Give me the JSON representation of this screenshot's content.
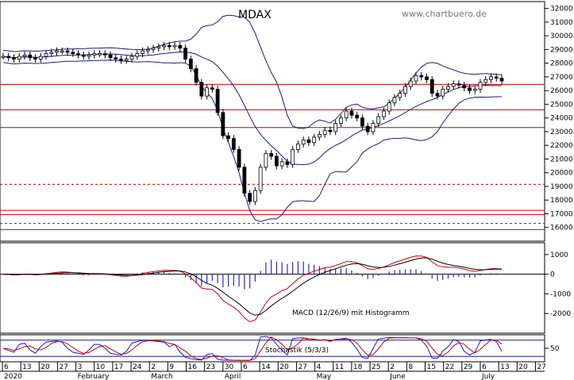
{
  "chart_data": {
    "title": "MDAX",
    "watermark": "www.chartbuero.de",
    "price_panel": {
      "type": "candlestick",
      "ylim": [
        15000,
        32500
      ],
      "y_ticks": [
        16000,
        17000,
        18000,
        19000,
        20000,
        21000,
        22000,
        23000,
        24000,
        25000,
        26000,
        27000,
        28000,
        29000,
        30000,
        31000,
        32000
      ],
      "y_tick_labels": [
        "16000",
        "17000",
        "18000",
        "19000",
        "20000",
        "21000",
        "22000",
        "23000",
        "24000",
        "25000",
        "26000",
        "27000",
        "28000",
        "29000",
        "30000",
        "31000",
        "32000"
      ],
      "support_resistance_solid": [
        26450,
        24600,
        23300,
        17250,
        16950,
        15850
      ],
      "support_resistance_dashed": [
        19150,
        16300
      ],
      "closes": [
        28500,
        28400,
        28300,
        28500,
        28600,
        28400,
        28300,
        28500,
        28700,
        28800,
        28900,
        28900,
        28800,
        28700,
        28600,
        28500,
        28600,
        28700,
        28700,
        28600,
        28400,
        28300,
        28200,
        28300,
        28500,
        28700,
        28900,
        29000,
        29100,
        29200,
        29300,
        29200,
        29300,
        29100,
        28300,
        27600,
        26600,
        25600,
        26200,
        26100,
        24400,
        22700,
        22500,
        21700,
        20400,
        18500,
        17900,
        18700,
        20400,
        21400,
        21200,
        20500,
        20800,
        20600,
        21700,
        22100,
        22400,
        22200,
        22600,
        22800,
        23100,
        23000,
        23600,
        24000,
        24500,
        24200,
        24000,
        23400,
        23000,
        23600,
        24100,
        24500,
        25100,
        25500,
        25800,
        26300,
        26700,
        27100,
        27000,
        26800,
        25800,
        25600,
        26100,
        26300,
        26500,
        26400,
        26200,
        26000,
        26100,
        26600,
        26800,
        27000,
        26900,
        26700
      ]
    },
    "macd_panel": {
      "label": "MACD (12/26/9) mit Histogramm",
      "ylim": [
        -3000,
        1600
      ],
      "y_ticks": [
        1000,
        0,
        -1000,
        -2000
      ],
      "y_tick_labels": [
        "1000",
        "0",
        "-1000",
        "-2000"
      ]
    },
    "stoch_panel": {
      "label": "Stochastik (5/3/3)",
      "ylim": [
        0,
        100
      ],
      "y_ticks": [
        50
      ],
      "y_tick_labels": [
        "50"
      ],
      "hlines": [
        80,
        20
      ]
    },
    "x_axis": {
      "day_labels": [
        "6",
        "13",
        "20",
        "27",
        "3",
        "10",
        "17",
        "24",
        "2",
        "9",
        "16",
        "23",
        "30",
        "6",
        "14",
        "20",
        "27",
        "4",
        "11",
        "18",
        "25",
        "2",
        "8",
        "15",
        "22",
        "29",
        "6",
        "13",
        "20",
        "27"
      ],
      "month_labels": [
        "2020",
        "February",
        "March",
        "April",
        "May",
        "June",
        "July"
      ]
    }
  }
}
